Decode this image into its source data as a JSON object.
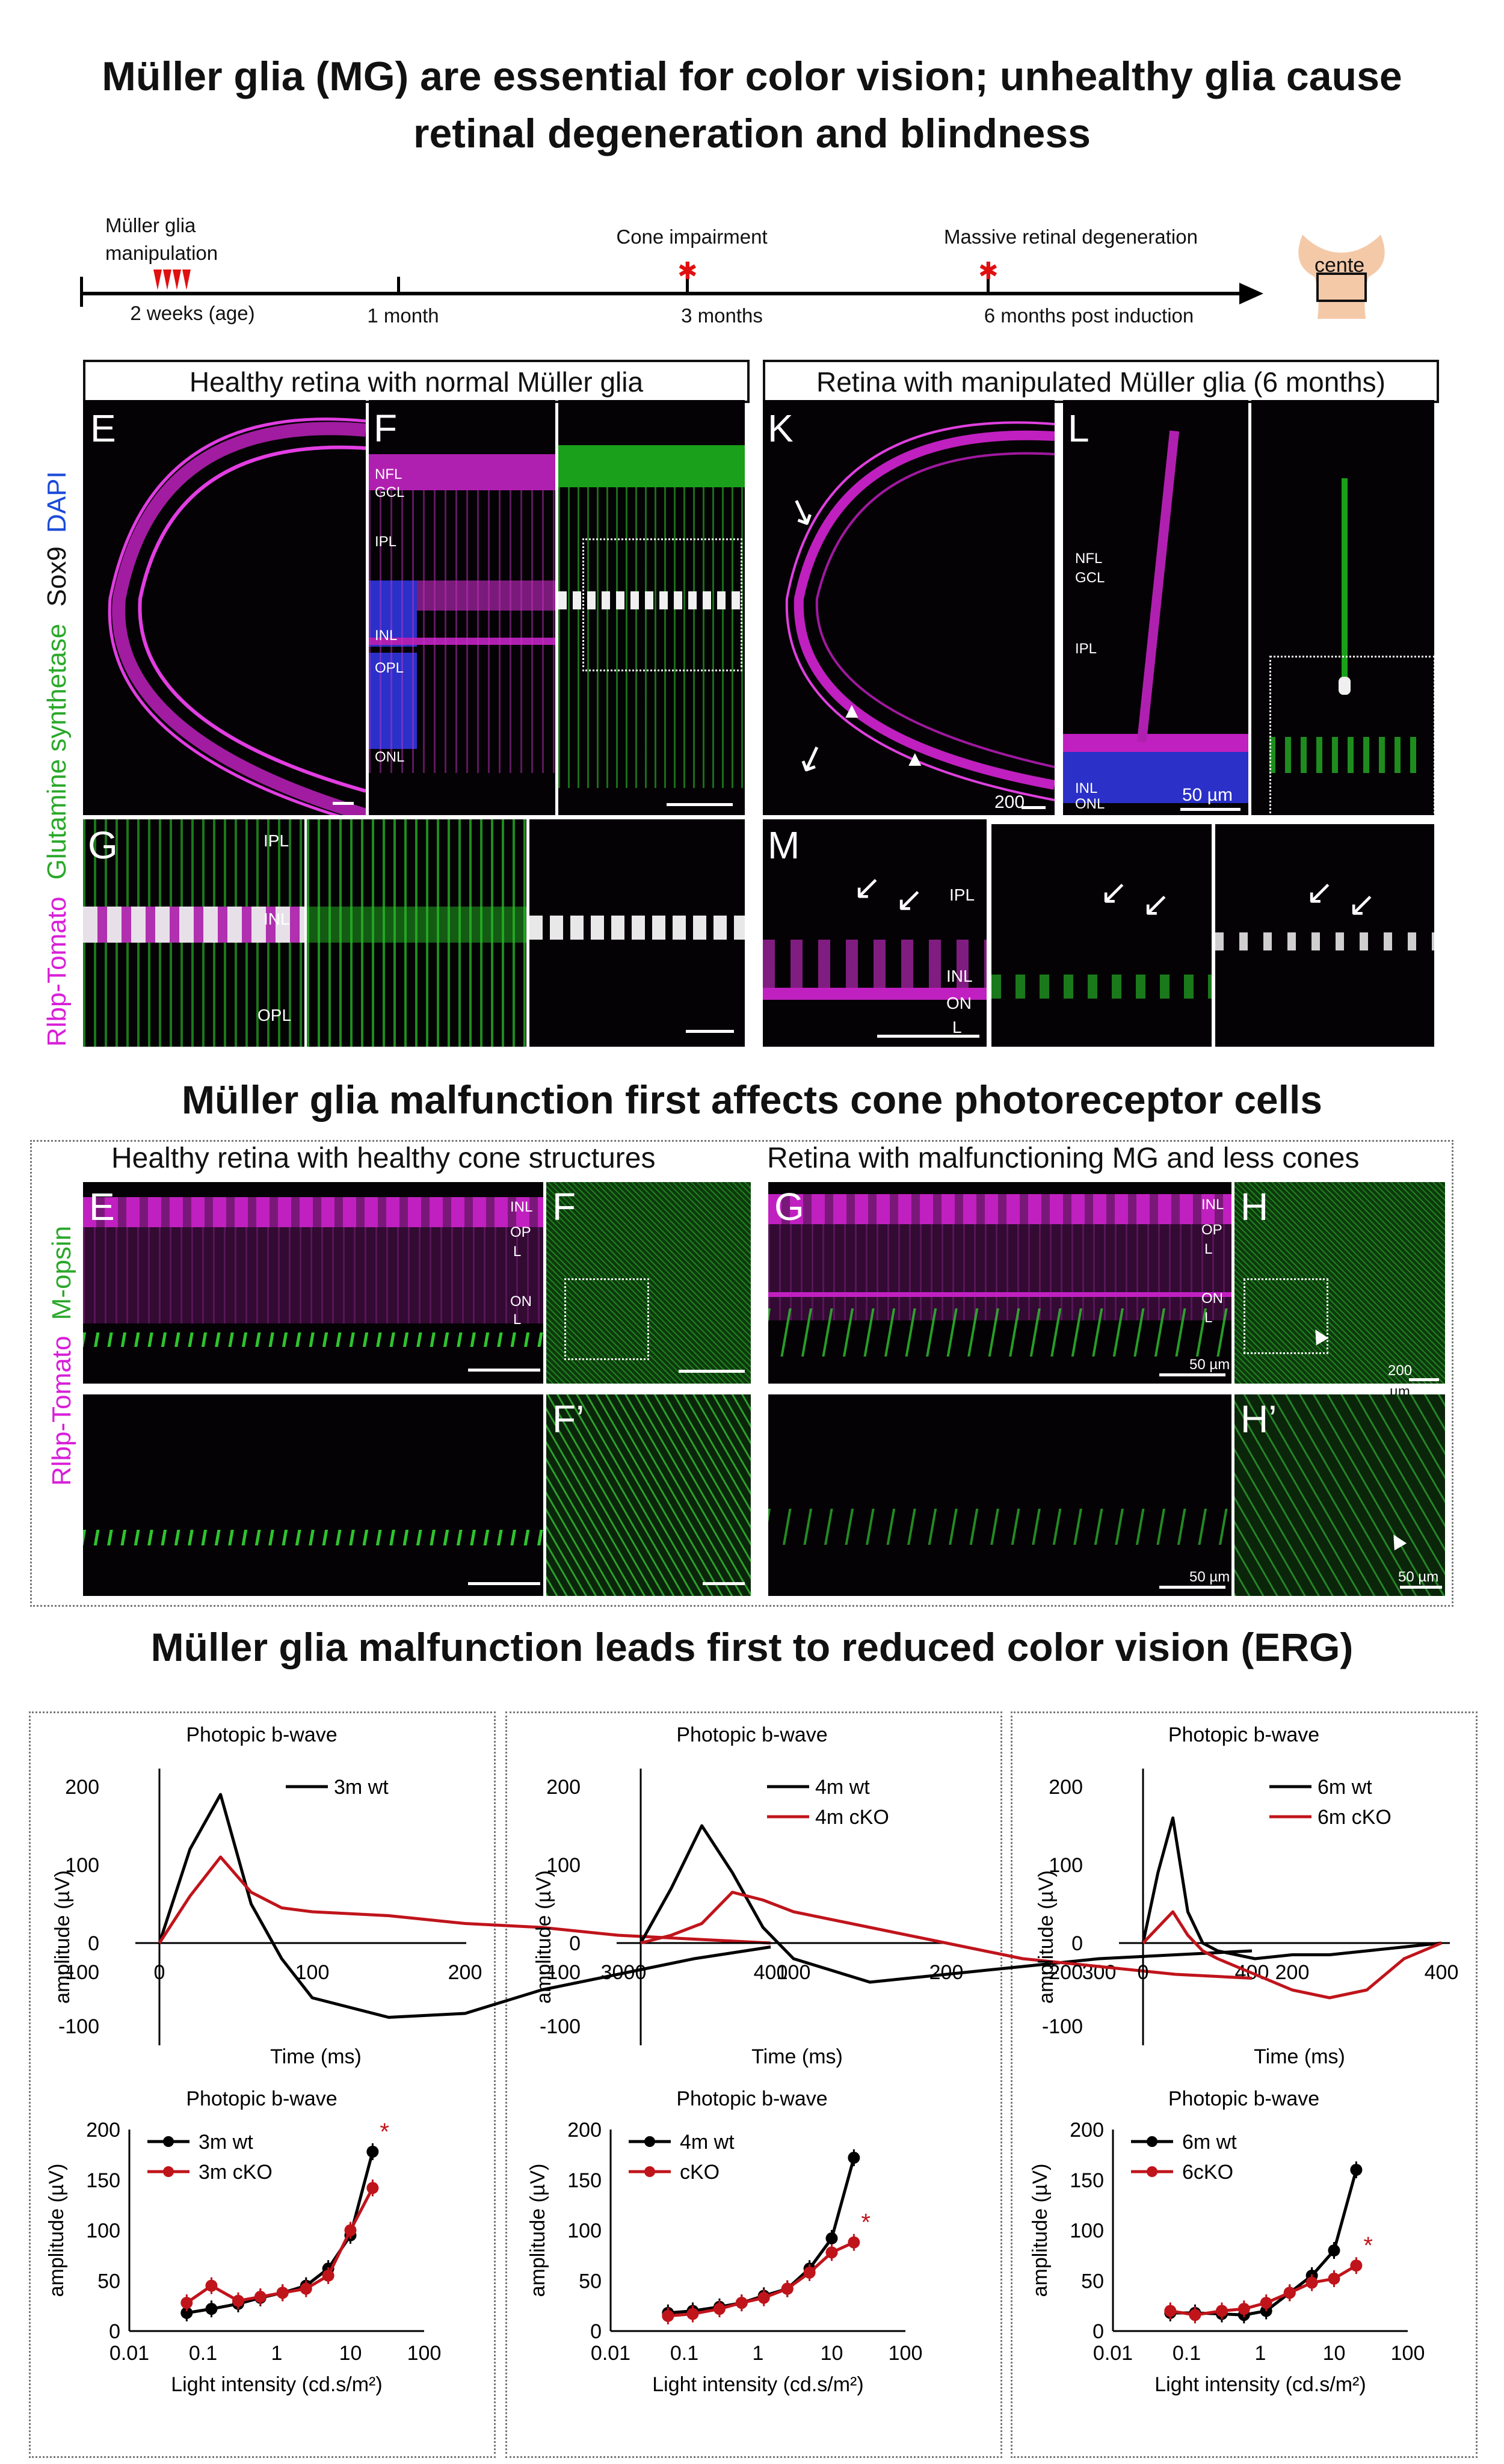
{
  "headings": {
    "top": "Müller glia (MG) are essential for color vision; unhealthy glia cause retinal degeneration and blindness",
    "middle": "Müller glia malfunction first affects cone photoreceptor cells",
    "bottom": "Müller glia malfunction leads first to reduced color vision (ERG)"
  },
  "timeline": {
    "manipulation": "Müller glia manipulation",
    "t1": "2 weeks (age)",
    "t2": "1 month",
    "t3": "3 months",
    "t4": "6 months post induction",
    "event1": "Cone impairment",
    "event2": "Massive retinal degeneration",
    "logo_text": "cente"
  },
  "section1": {
    "healthy_header": "Healthy retina with normal Müller glia",
    "manipulated_header": "Retina with manipulated Müller glia (6 months)",
    "side_label_parts": [
      "Rlbp-Tomato",
      "Glutamine synthetase",
      "Sox9",
      "DAPI"
    ],
    "letters": [
      "E",
      "F",
      "G",
      "K",
      "L",
      "M"
    ],
    "layers_F": [
      "NFL",
      "GCL",
      "IPL",
      "INL",
      "OPL",
      "ONL"
    ],
    "layers_G": [
      "IPL",
      "INL",
      "OPL"
    ],
    "layers_L": [
      "NFL",
      "GCL",
      "IPL",
      "INL",
      "ONL"
    ],
    "layers_M": [
      "IPL",
      "INL",
      "ON",
      "L"
    ],
    "scale_K": "200",
    "scale_K_unit": "µm",
    "scale_L": "50 µm"
  },
  "section2": {
    "healthy_header": "Healthy retina with healthy cone structures",
    "malfunction_header": "Retina with malfunctioning MG and less cones",
    "side_label_parts": [
      "Rlbp-Tomato",
      "M-opsin"
    ],
    "letters": [
      "E",
      "F",
      "F’",
      "G",
      "H",
      "H’"
    ],
    "layers_E": [
      "INL",
      "OP",
      "L",
      "ON",
      "L"
    ],
    "layers_G": [
      "INL",
      "OP",
      "L",
      "ON",
      "L"
    ],
    "scale_G": "50 µm",
    "scale_H": "200",
    "scale_H_unit": "µm",
    "scale_G2": "50 µm",
    "scale_H2": "50 µm"
  },
  "erg": {
    "colors": {
      "wt": "#000000",
      "cko": "#c0141b"
    },
    "trace_title": "Photopic b-wave",
    "trace_ylabel": "amplitude (µV)",
    "trace_xlabel": "Time (ms)",
    "intensity_title": "Photopic b-wave",
    "intensity_ylabel": "amplitude (µV)",
    "intensity_xlabel": "Light intensity (cd.s/m²)",
    "panels": [
      {
        "legend_wt": "3m wt",
        "legend_cko": "",
        "trace_yticks": [
          "200",
          "100",
          "0",
          "-100",
          "-100"
        ],
        "trace_xticks": [
          "0",
          "100",
          "200",
          "300",
          "400"
        ],
        "intensity_legend_wt": "3m wt",
        "intensity_legend_cko": "3m cKO"
      },
      {
        "legend_wt": "4m wt",
        "legend_cko": "4m cKO",
        "trace_yticks": [
          "200",
          "100",
          "0",
          "-100",
          "-100"
        ],
        "trace_xticks": [
          "0",
          "100",
          "200",
          "300",
          "400"
        ],
        "intensity_legend_wt": "4m wt",
        "intensity_legend_cko": "cKO"
      },
      {
        "legend_wt": "6m wt",
        "legend_cko": "6m cKO",
        "trace_yticks": [
          "200",
          "100",
          "0",
          "-200",
          "-100"
        ],
        "trace_xticks": [
          "0",
          "200",
          "400"
        ],
        "intensity_legend_wt": "6m wt",
        "intensity_legend_cko": "6cKO"
      }
    ],
    "intensity_yticks": [
      "200",
      "150",
      "100",
      "50",
      "0"
    ],
    "intensity_xticks": [
      "0.01",
      "0.1",
      "1",
      "10",
      "100"
    ],
    "significance": "*"
  },
  "chart_data": [
    {
      "type": "line",
      "panel": "3m trace",
      "x": [
        0,
        20,
        40,
        60,
        80,
        100,
        150,
        200,
        250,
        300,
        350,
        400
      ],
      "series": [
        {
          "name": "3m wt",
          "values": [
            0,
            120,
            190,
            50,
            -20,
            -70,
            -95,
            -90,
            -60,
            -40,
            -20,
            -5
          ]
        },
        {
          "name": "",
          "values": [
            0,
            60,
            110,
            65,
            45,
            40,
            35,
            25,
            20,
            10,
            5,
            0
          ]
        }
      ],
      "xlabel": "Time (ms)",
      "ylabel": "amplitude (µV)",
      "xlim": [
        -40,
        400
      ],
      "ylim": [
        -100,
        200
      ]
    },
    {
      "type": "line",
      "panel": "4m trace",
      "x": [
        0,
        20,
        40,
        60,
        80,
        100,
        150,
        200,
        250,
        300,
        350,
        400
      ],
      "series": [
        {
          "name": "4m wt",
          "values": [
            0,
            70,
            150,
            90,
            20,
            -20,
            -50,
            -40,
            -30,
            -20,
            -15,
            -10
          ]
        },
        {
          "name": "4m cKO",
          "values": [
            0,
            10,
            25,
            65,
            55,
            40,
            20,
            0,
            -20,
            -30,
            -40,
            -45
          ]
        }
      ],
      "xlabel": "Time (ms)",
      "ylabel": "amplitude (µV)",
      "xlim": [
        -40,
        400
      ],
      "ylim": [
        -100,
        200
      ]
    },
    {
      "type": "line",
      "panel": "6m trace",
      "x": [
        0,
        20,
        40,
        60,
        80,
        100,
        150,
        200,
        250,
        300,
        350,
        400
      ],
      "series": [
        {
          "name": "6m wt",
          "values": [
            0,
            90,
            160,
            40,
            0,
            -10,
            -20,
            -15,
            -15,
            -10,
            -5,
            0
          ]
        },
        {
          "name": "6m cKO",
          "values": [
            0,
            20,
            40,
            10,
            -10,
            -20,
            -40,
            -60,
            -70,
            -60,
            -20,
            0
          ]
        }
      ],
      "xlabel": "Time (ms)",
      "ylabel": "amplitude (µV)",
      "xlim": [
        -40,
        400
      ],
      "ylim": [
        -100,
        200
      ]
    },
    {
      "type": "line",
      "panel": "3m intensity",
      "x": [
        0.06,
        0.13,
        0.3,
        0.6,
        1.2,
        2.5,
        5,
        10,
        20
      ],
      "series": [
        {
          "name": "3m wt",
          "values": [
            18,
            22,
            27,
            33,
            38,
            45,
            62,
            95,
            178
          ]
        },
        {
          "name": "3m cKO",
          "values": [
            28,
            45,
            30,
            34,
            38,
            42,
            55,
            100,
            142
          ]
        }
      ],
      "xlabel": "Light intensity (cd.s/m²)",
      "ylabel": "amplitude (µV)",
      "ylim": [
        0,
        200
      ],
      "xscale": "log"
    },
    {
      "type": "line",
      "panel": "4m intensity",
      "x": [
        0.06,
        0.13,
        0.3,
        0.6,
        1.2,
        2.5,
        5,
        10,
        20
      ],
      "series": [
        {
          "name": "4m wt",
          "values": [
            18,
            20,
            24,
            28,
            35,
            42,
            62,
            92,
            172
          ]
        },
        {
          "name": "cKO",
          "values": [
            15,
            17,
            22,
            28,
            33,
            42,
            58,
            78,
            88
          ]
        }
      ],
      "xlabel": "Light intensity (cd.s/m²)",
      "ylabel": "amplitude (µV)",
      "ylim": [
        0,
        200
      ],
      "xscale": "log"
    },
    {
      "type": "line",
      "panel": "6m intensity",
      "x": [
        0.06,
        0.13,
        0.3,
        0.6,
        1.2,
        2.5,
        5,
        10,
        20
      ],
      "series": [
        {
          "name": "6m wt",
          "values": [
            18,
            18,
            17,
            16,
            20,
            38,
            55,
            80,
            160
          ]
        },
        {
          "name": "6cKO",
          "values": [
            20,
            16,
            20,
            22,
            28,
            38,
            48,
            52,
            65
          ]
        }
      ],
      "xlabel": "Light intensity (cd.s/m²)",
      "ylabel": "amplitude (µV)",
      "ylim": [
        0,
        200
      ],
      "xscale": "log"
    }
  ]
}
